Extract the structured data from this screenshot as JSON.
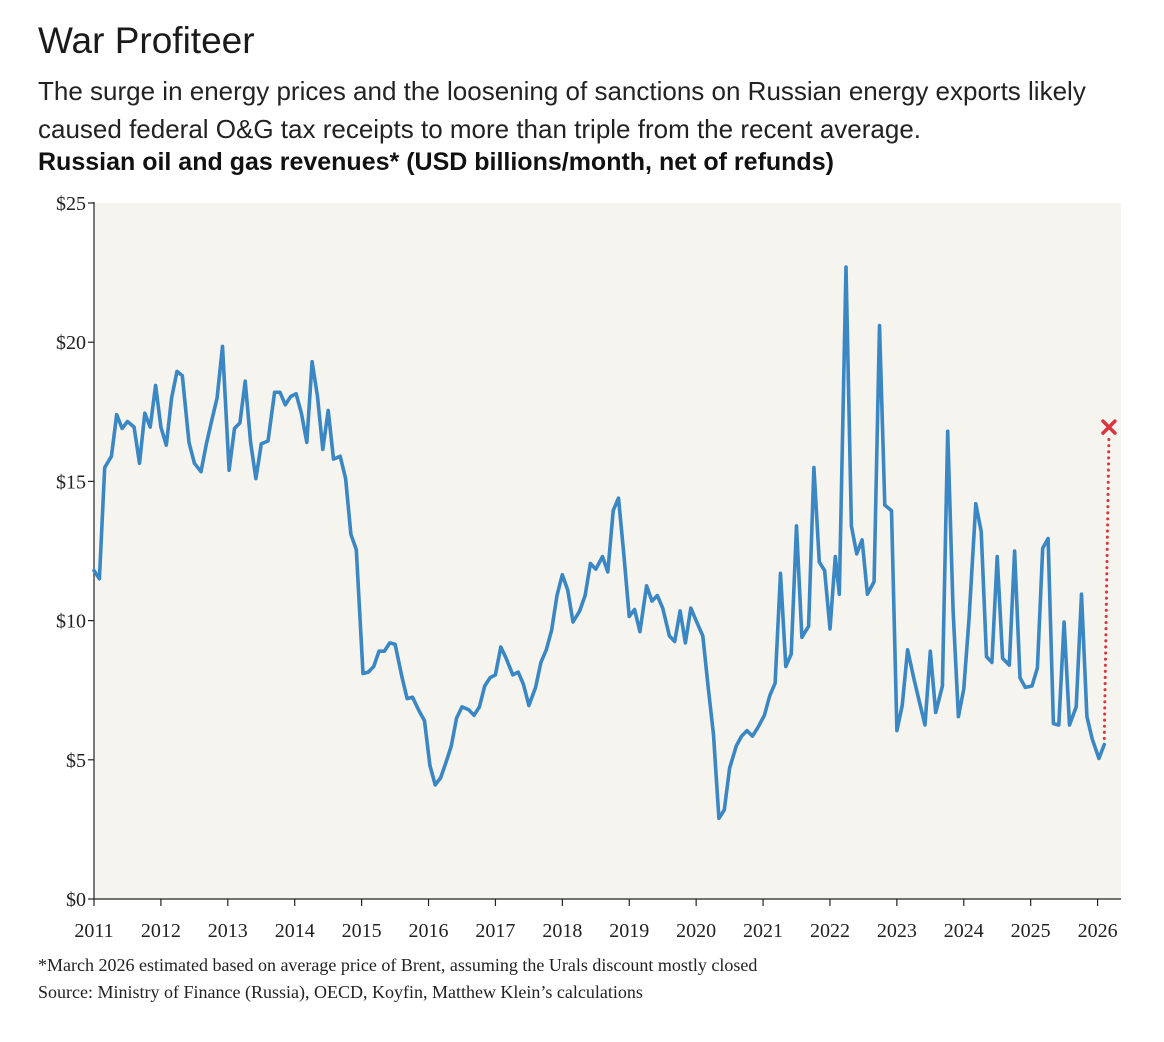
{
  "title": "War Profiteer",
  "subtitle": "The surge in energy prices and the loosening of sanctions on Russian energy exports likely caused federal O&G tax receipts to more than triple from the recent average.",
  "chart_heading": "Russian oil and gas revenues* (USD billions/month, net of refunds)",
  "footnote": "*March 2026 estimated based on average price of Brent, assuming the Urals discount mostly closed",
  "source": "Source: Ministry of Finance (Russia), OECD, Koyfin, Matthew Klein’s calculations",
  "colors": {
    "line": "#3a87c4",
    "estimate": "#d9363e",
    "plot_background": "#f5f4ef",
    "axis": "#222222"
  },
  "chart_data": {
    "type": "line",
    "title": "Russian oil and gas revenues* (USD billions/month, net of refunds)",
    "xlabel": "",
    "ylabel": "",
    "xlim": [
      2011.0,
      2026.35
    ],
    "ylim": [
      0,
      25
    ],
    "grid": false,
    "legend": "none",
    "y_ticks": [
      0,
      5,
      10,
      15,
      20,
      25
    ],
    "y_tick_labels": [
      "$0",
      "$5",
      "$10",
      "$15",
      "$20",
      "$25"
    ],
    "x_ticks": [
      2011,
      2012,
      2013,
      2014,
      2015,
      2016,
      2017,
      2018,
      2019,
      2020,
      2021,
      2022,
      2023,
      2024,
      2025,
      2026
    ],
    "x_tick_labels": [
      "2011",
      "2012",
      "2013",
      "2014",
      "2015",
      "2016",
      "2017",
      "2018",
      "2019",
      "2020",
      "2021",
      "2022",
      "2023",
      "2024",
      "2025",
      "2026"
    ],
    "series": [
      {
        "name": "Russian oil and gas revenues",
        "points": [
          [
            2011.0,
            11.8
          ],
          [
            2011.08,
            11.5
          ],
          [
            2011.16,
            15.5
          ],
          [
            2011.26,
            15.9
          ],
          [
            2011.34,
            17.4
          ],
          [
            2011.42,
            16.9
          ],
          [
            2011.5,
            17.15
          ],
          [
            2011.6,
            16.95
          ],
          [
            2011.68,
            15.65
          ],
          [
            2011.76,
            17.45
          ],
          [
            2011.84,
            16.95
          ],
          [
            2011.92,
            18.45
          ],
          [
            2012.0,
            16.95
          ],
          [
            2012.08,
            16.3
          ],
          [
            2012.16,
            18.0
          ],
          [
            2012.24,
            18.95
          ],
          [
            2012.32,
            18.8
          ],
          [
            2012.42,
            16.4
          ],
          [
            2012.5,
            15.65
          ],
          [
            2012.6,
            15.35
          ],
          [
            2012.68,
            16.35
          ],
          [
            2012.76,
            17.2
          ],
          [
            2012.84,
            18.0
          ],
          [
            2012.92,
            19.85
          ],
          [
            2013.02,
            15.4
          ],
          [
            2013.1,
            16.9
          ],
          [
            2013.18,
            17.1
          ],
          [
            2013.26,
            18.6
          ],
          [
            2013.34,
            16.4
          ],
          [
            2013.42,
            15.1
          ],
          [
            2013.5,
            16.35
          ],
          [
            2013.6,
            16.45
          ],
          [
            2013.7,
            18.2
          ],
          [
            2013.78,
            18.2
          ],
          [
            2013.86,
            17.75
          ],
          [
            2013.94,
            18.05
          ],
          [
            2014.02,
            18.15
          ],
          [
            2014.1,
            17.45
          ],
          [
            2014.18,
            16.4
          ],
          [
            2014.26,
            19.3
          ],
          [
            2014.34,
            18.05
          ],
          [
            2014.42,
            16.15
          ],
          [
            2014.5,
            17.55
          ],
          [
            2014.58,
            15.8
          ],
          [
            2014.68,
            15.9
          ],
          [
            2014.76,
            15.1
          ],
          [
            2014.84,
            13.1
          ],
          [
            2014.92,
            12.55
          ],
          [
            2015.02,
            8.1
          ],
          [
            2015.1,
            8.15
          ],
          [
            2015.18,
            8.35
          ],
          [
            2015.26,
            8.9
          ],
          [
            2015.34,
            8.9
          ],
          [
            2015.42,
            9.2
          ],
          [
            2015.5,
            9.15
          ],
          [
            2015.6,
            8.0
          ],
          [
            2015.68,
            7.2
          ],
          [
            2015.76,
            7.25
          ],
          [
            2015.86,
            6.75
          ],
          [
            2015.94,
            6.4
          ],
          [
            2016.02,
            4.8
          ],
          [
            2016.1,
            4.1
          ],
          [
            2016.18,
            4.35
          ],
          [
            2016.26,
            4.9
          ],
          [
            2016.34,
            5.5
          ],
          [
            2016.42,
            6.5
          ],
          [
            2016.5,
            6.9
          ],
          [
            2016.6,
            6.8
          ],
          [
            2016.68,
            6.6
          ],
          [
            2016.76,
            6.9
          ],
          [
            2016.84,
            7.65
          ],
          [
            2016.92,
            7.95
          ],
          [
            2017.0,
            8.05
          ],
          [
            2017.08,
            9.05
          ],
          [
            2017.16,
            8.65
          ],
          [
            2017.26,
            8.05
          ],
          [
            2017.34,
            8.15
          ],
          [
            2017.42,
            7.7
          ],
          [
            2017.5,
            6.95
          ],
          [
            2017.6,
            7.6
          ],
          [
            2017.68,
            8.5
          ],
          [
            2017.76,
            8.95
          ],
          [
            2017.84,
            9.65
          ],
          [
            2017.92,
            10.9
          ],
          [
            2018.0,
            11.65
          ],
          [
            2018.08,
            11.1
          ],
          [
            2018.16,
            9.95
          ],
          [
            2018.26,
            10.35
          ],
          [
            2018.34,
            10.9
          ],
          [
            2018.42,
            12.05
          ],
          [
            2018.5,
            11.85
          ],
          [
            2018.6,
            12.3
          ],
          [
            2018.68,
            11.75
          ],
          [
            2018.76,
            13.95
          ],
          [
            2018.84,
            14.4
          ],
          [
            2018.92,
            12.35
          ],
          [
            2019.0,
            10.15
          ],
          [
            2019.08,
            10.4
          ],
          [
            2019.16,
            9.6
          ],
          [
            2019.26,
            11.25
          ],
          [
            2019.34,
            10.7
          ],
          [
            2019.42,
            10.9
          ],
          [
            2019.5,
            10.45
          ],
          [
            2019.6,
            9.45
          ],
          [
            2019.68,
            9.25
          ],
          [
            2019.76,
            10.35
          ],
          [
            2019.84,
            9.2
          ],
          [
            2019.92,
            10.45
          ],
          [
            2020.0,
            10.0
          ],
          [
            2020.1,
            9.45
          ],
          [
            2020.18,
            7.6
          ],
          [
            2020.26,
            5.9
          ],
          [
            2020.34,
            2.9
          ],
          [
            2020.42,
            3.2
          ],
          [
            2020.5,
            4.7
          ],
          [
            2020.6,
            5.5
          ],
          [
            2020.68,
            5.85
          ],
          [
            2020.76,
            6.05
          ],
          [
            2020.84,
            5.85
          ],
          [
            2020.92,
            6.15
          ],
          [
            2021.02,
            6.6
          ],
          [
            2021.1,
            7.3
          ],
          [
            2021.18,
            7.75
          ],
          [
            2021.26,
            11.7
          ],
          [
            2021.34,
            8.35
          ],
          [
            2021.42,
            8.8
          ],
          [
            2021.5,
            13.4
          ],
          [
            2021.58,
            9.4
          ],
          [
            2021.68,
            9.8
          ],
          [
            2021.76,
            15.5
          ],
          [
            2021.84,
            12.1
          ],
          [
            2021.92,
            11.8
          ],
          [
            2022.0,
            9.7
          ],
          [
            2022.08,
            12.3
          ],
          [
            2022.14,
            10.95
          ],
          [
            2022.24,
            22.7
          ],
          [
            2022.32,
            13.4
          ],
          [
            2022.4,
            12.4
          ],
          [
            2022.48,
            12.9
          ],
          [
            2022.56,
            10.95
          ],
          [
            2022.66,
            11.4
          ],
          [
            2022.74,
            20.6
          ],
          [
            2022.82,
            14.15
          ],
          [
            2022.92,
            13.95
          ],
          [
            2023.0,
            6.05
          ],
          [
            2023.08,
            6.95
          ],
          [
            2023.16,
            8.95
          ],
          [
            2023.26,
            7.85
          ],
          [
            2023.34,
            7.05
          ],
          [
            2023.42,
            6.25
          ],
          [
            2023.5,
            8.9
          ],
          [
            2023.58,
            6.7
          ],
          [
            2023.68,
            7.65
          ],
          [
            2023.76,
            16.8
          ],
          [
            2023.84,
            10.35
          ],
          [
            2023.92,
            6.55
          ],
          [
            2024.0,
            7.55
          ],
          [
            2024.08,
            10.1
          ],
          [
            2024.18,
            14.2
          ],
          [
            2024.26,
            13.2
          ],
          [
            2024.34,
            8.7
          ],
          [
            2024.42,
            8.5
          ],
          [
            2024.5,
            12.3
          ],
          [
            2024.58,
            8.65
          ],
          [
            2024.68,
            8.4
          ],
          [
            2024.76,
            12.5
          ],
          [
            2024.84,
            7.95
          ],
          [
            2024.92,
            7.6
          ],
          [
            2025.02,
            7.65
          ],
          [
            2025.1,
            8.3
          ],
          [
            2025.18,
            12.6
          ],
          [
            2025.26,
            12.95
          ],
          [
            2025.34,
            6.3
          ],
          [
            2025.42,
            6.25
          ],
          [
            2025.5,
            9.95
          ],
          [
            2025.58,
            6.25
          ],
          [
            2025.68,
            6.9
          ],
          [
            2025.76,
            10.95
          ],
          [
            2025.84,
            6.55
          ],
          [
            2025.92,
            5.75
          ],
          [
            2026.02,
            5.05
          ],
          [
            2026.1,
            5.55
          ]
        ]
      }
    ],
    "estimate": {
      "name": "March 2026 estimate",
      "marker": "x",
      "point": [
        2026.17,
        16.95
      ],
      "from": [
        2026.1,
        5.55
      ]
    }
  }
}
